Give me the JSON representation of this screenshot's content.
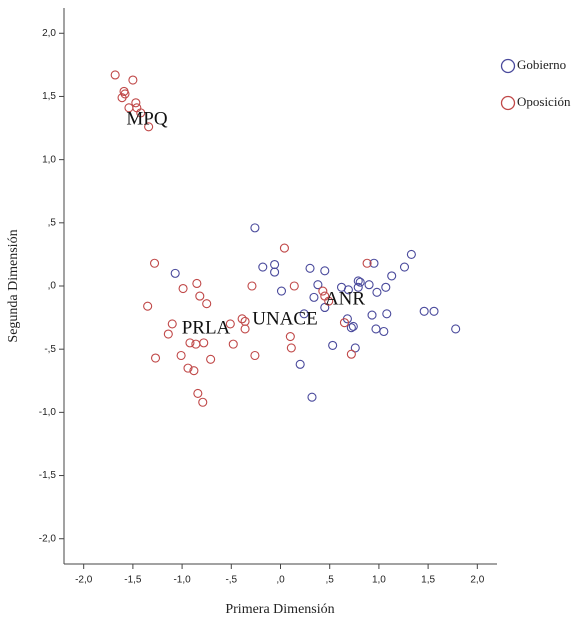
{
  "chart_data": {
    "type": "scatter",
    "xlabel": "Primera Dimensión",
    "ylabel": "Segunda Dimensión",
    "xlim": [
      -2.2,
      2.2
    ],
    "ylim": [
      -2.2,
      2.2
    ],
    "xticks": [
      {
        "value": -2,
        "label": "-2,0"
      },
      {
        "value": -1.5,
        "label": "-1,5"
      },
      {
        "value": -1,
        "label": "-1,0"
      },
      {
        "value": -0.5,
        "label": "-,5"
      },
      {
        "value": 0,
        "label": ",0"
      },
      {
        "value": 0.5,
        "label": ",5"
      },
      {
        "value": 1,
        "label": "1,0"
      },
      {
        "value": 1.5,
        "label": "1,5"
      },
      {
        "value": 2,
        "label": "2,0"
      }
    ],
    "yticks": [
      {
        "value": 2,
        "label": "2,0"
      },
      {
        "value": 1.5,
        "label": "1,5"
      },
      {
        "value": 1,
        "label": "1,0"
      },
      {
        "value": 0.5,
        "label": ",5"
      },
      {
        "value": 0,
        "label": ",0"
      },
      {
        "value": -0.5,
        "label": "-,5"
      },
      {
        "value": -1,
        "label": "-1,0"
      },
      {
        "value": -1.5,
        "label": "-1,5"
      },
      {
        "value": -2,
        "label": "-2,0"
      }
    ],
    "annotations": [
      "MPQ",
      "PRLA",
      "UNACE",
      "ANR"
    ],
    "series": [
      {
        "name": "Gobierno",
        "color": "#4a4a9c",
        "x": [
          -0.26,
          -0.18,
          -0.06,
          -0.06,
          0.01,
          -1.07,
          0.3,
          0.45,
          0.38,
          0.34,
          0.24,
          0.2,
          0.32,
          0.45,
          0.53,
          0.68,
          0.72,
          0.74,
          0.76,
          0.69,
          0.79,
          0.79,
          0.81,
          0.9,
          0.98,
          0.95,
          0.93,
          0.97,
          1.05,
          1.07,
          1.08,
          1.13,
          1.26,
          1.33,
          1.46,
          1.56,
          1.78,
          0.62
        ],
        "values": [
          0.46,
          0.15,
          0.17,
          0.11,
          -0.04,
          0.1,
          0.14,
          0.12,
          0.01,
          -0.09,
          -0.22,
          -0.62,
          -0.88,
          -0.17,
          -0.47,
          -0.26,
          -0.33,
          -0.32,
          -0.49,
          -0.03,
          0.04,
          -0.01,
          0.03,
          0.01,
          -0.05,
          0.18,
          -0.23,
          -0.34,
          -0.36,
          -0.01,
          -0.22,
          0.08,
          0.15,
          0.25,
          -0.2,
          -0.2,
          -0.34,
          -0.01
        ]
      },
      {
        "name": "Oposición",
        "color": "#c04848",
        "x": [
          -1.68,
          -1.5,
          -1.59,
          -1.58,
          -1.61,
          -1.54,
          -1.47,
          -1.46,
          -1.34,
          -1.42,
          -1.28,
          -1.35,
          -0.99,
          -0.85,
          -0.82,
          -0.75,
          -1.1,
          -1.14,
          -1.27,
          -1.01,
          -0.94,
          -0.88,
          -0.92,
          -0.86,
          -0.78,
          -0.71,
          -0.84,
          -0.79,
          -0.51,
          -0.48,
          -0.39,
          -0.36,
          -0.36,
          -0.29,
          -0.26,
          0.04,
          0.14,
          0.1,
          0.11,
          0.43,
          0.45,
          0.65,
          0.72,
          0.88,
          0.49
        ],
        "values": [
          1.67,
          1.63,
          1.54,
          1.52,
          1.49,
          1.41,
          1.45,
          1.41,
          1.26,
          1.37,
          0.18,
          -0.16,
          -0.02,
          0.02,
          -0.08,
          -0.14,
          -0.3,
          -0.38,
          -0.57,
          -0.55,
          -0.65,
          -0.67,
          -0.45,
          -0.46,
          -0.45,
          -0.58,
          -0.85,
          -0.92,
          -0.3,
          -0.46,
          -0.26,
          -0.28,
          -0.34,
          0.0,
          -0.55,
          0.3,
          0.0,
          -0.4,
          -0.49,
          -0.04,
          -0.08,
          -0.29,
          -0.54,
          0.18,
          -0.12
        ]
      }
    ]
  }
}
